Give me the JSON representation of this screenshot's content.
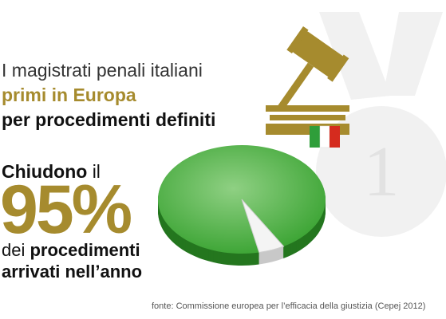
{
  "chart_data": {
    "type": "pie",
    "title": [
      "I magistrati penali italiani",
      "primi in Europa",
      "per procedimenti definiti"
    ],
    "lead": [
      "Chiudono",
      "il"
    ],
    "values": [
      95,
      5
    ],
    "value_labels": [
      "95%",
      null
    ],
    "colors": [
      "#3fa637",
      "#f4f4f4"
    ],
    "caption": [
      "dei",
      "procedimenti",
      "arrivati nell’anno"
    ],
    "badge": "1",
    "source": "fonte: Commissione europea per l’efficacia della giustizia (Cepej 2012)"
  }
}
